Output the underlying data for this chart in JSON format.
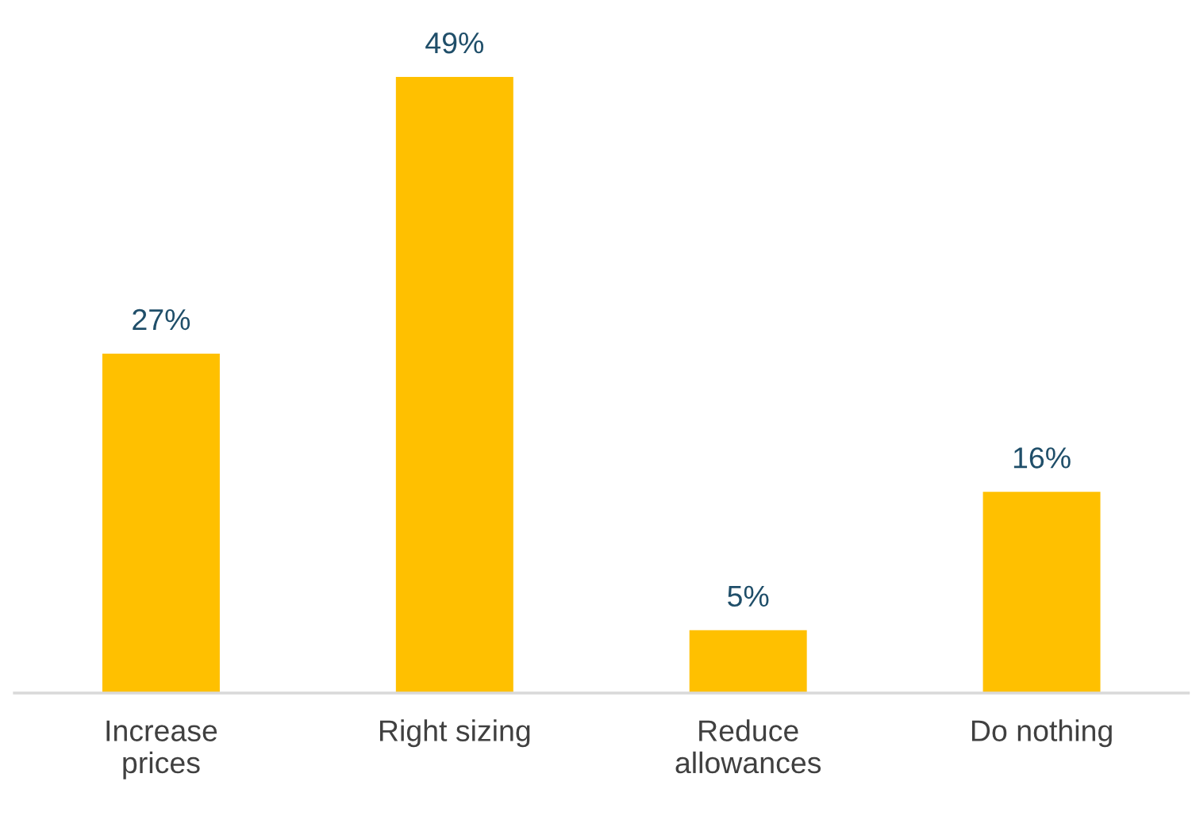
{
  "chart_data": {
    "type": "bar",
    "categories": [
      "Increase\nprices",
      "Right sizing",
      "Reduce\nallowances",
      "Do nothing"
    ],
    "values": [
      27,
      49,
      5,
      16
    ],
    "color": "#ffc000",
    "value_labels": [
      "27%",
      "49%",
      "5%",
      "16%"
    ],
    "grid": false,
    "legend": false
  }
}
